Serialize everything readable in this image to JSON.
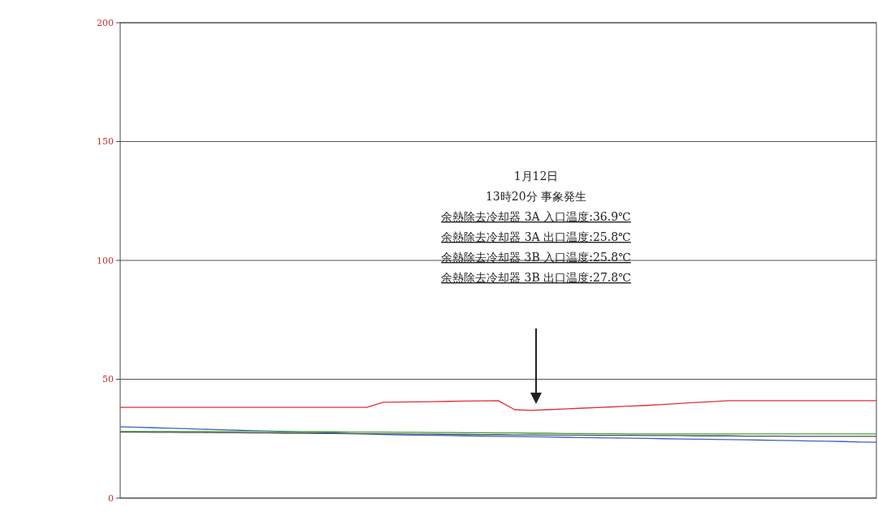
{
  "chart_data": {
    "type": "line",
    "categories": [
      null,
      null,
      null,
      null,
      null,
      null,
      null,
      null,
      null,
      null,
      null,
      null,
      null,
      null,
      null,
      null,
      null,
      null,
      null,
      null,
      null,
      null,
      null,
      null,
      null,
      null,
      null,
      null,
      null,
      null,
      null,
      null,
      null,
      null,
      null,
      null,
      null,
      null,
      null,
      null,
      null,
      null,
      null,
      null,
      null,
      null,
      null
    ],
    "series": [
      {
        "color": "#e0303a",
        "values": [
          38.2,
          38.2,
          38.2,
          38.2,
          38.2,
          38.2,
          38.2,
          38.2,
          38.2,
          38.2,
          38.2,
          38.2,
          38.2,
          38.2,
          38.2,
          38.2,
          40.3,
          40.4,
          40.5,
          40.6,
          40.7,
          40.8,
          40.9,
          41.0,
          37.2,
          36.9,
          37.2,
          37.5,
          37.8,
          38.1,
          38.4,
          38.7,
          39.0,
          39.4,
          39.8,
          40.2,
          40.6,
          41.0,
          41.0,
          41.0,
          41.0,
          41.0,
          41.0,
          41.0,
          41.0,
          41.0,
          41.0
        ]
      },
      {
        "color": "#4060c0",
        "values": [
          30.0,
          29.8,
          29.6,
          29.4,
          29.2,
          29.0,
          28.8,
          28.6,
          28.4,
          28.2,
          28.0,
          27.8,
          27.6,
          27.4,
          27.2,
          27.0,
          26.8,
          26.6,
          26.5,
          26.4,
          26.3,
          26.2,
          26.1,
          26.0,
          25.9,
          25.8,
          25.7,
          25.6,
          25.5,
          25.4,
          25.3,
          25.2,
          25.1,
          25.0,
          24.9,
          24.8,
          24.7,
          24.6,
          24.5,
          24.4,
          24.3,
          24.2,
          24.0,
          23.9,
          23.8,
          23.6,
          23.5
        ]
      },
      {
        "color": "#40a040",
        "values": [
          28.0,
          28.0,
          28.0,
          28.0,
          28.0,
          28.0,
          28.0,
          28.0,
          28.0,
          28.0,
          27.9,
          27.9,
          27.9,
          27.9,
          27.8,
          27.8,
          27.8,
          27.7,
          27.7,
          27.6,
          27.6,
          27.5,
          27.5,
          27.4,
          27.4,
          27.3,
          27.3,
          27.2,
          27.2,
          27.1,
          27.1,
          27.0,
          27.0,
          27.0,
          27.0,
          27.0,
          27.0,
          27.0,
          27.0,
          27.0,
          27.0,
          27.0,
          27.0,
          27.0,
          27.0,
          27.0,
          27.0
        ]
      },
      {
        "color": "#505050",
        "values": [
          27.8,
          27.8,
          27.7,
          27.7,
          27.6,
          27.6,
          27.5,
          27.5,
          27.4,
          27.4,
          27.3,
          27.3,
          27.2,
          27.2,
          27.1,
          27.1,
          27.0,
          27.0,
          26.9,
          26.9,
          26.8,
          26.8,
          26.7,
          26.7,
          26.6,
          26.6,
          26.5,
          26.5,
          26.5,
          26.4,
          26.4,
          26.4,
          26.3,
          26.3,
          26.3,
          26.2,
          26.2,
          26.2,
          26.1,
          26.1,
          26.1,
          26.0,
          26.0,
          26.0,
          26.0,
          26.0,
          26.0
        ]
      }
    ],
    "ylim": [
      0,
      200
    ],
    "yticks": [
      0,
      50,
      100,
      150,
      200
    ],
    "grid": "y",
    "tick_labels": "y",
    "annotations": [
      "1月12日",
      "13時20分  事象発生",
      "余熱除去冷却器 3A 入口温度:36.9℃",
      "余熱除去冷却器 3A 出口温度:25.8℃",
      "余熱除去冷却器 3B 入口温度:25.8℃",
      "余熱除去冷却器 3B 出口温度:27.8℃"
    ]
  }
}
